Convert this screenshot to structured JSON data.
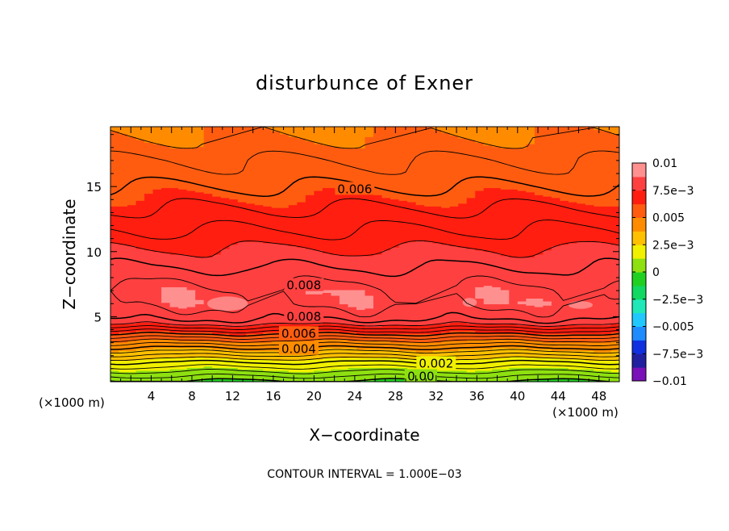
{
  "chart_data": {
    "type": "heatmap",
    "title": "disturbunce of Exner",
    "xlabel": "X−coordinate",
    "ylabel": "Z−coordinate",
    "x_unit": "(×1000 m)",
    "y_unit": "(×1000 m)",
    "xlim": [
      0,
      50
    ],
    "ylim": [
      0,
      19.6
    ],
    "x_ticks": [
      "4",
      "8",
      "12",
      "16",
      "20",
      "24",
      "28",
      "32",
      "36",
      "40",
      "44",
      "48"
    ],
    "y_ticks": [
      "5",
      "10",
      "15"
    ],
    "contour_interval": 0.001,
    "footer": "CONTOUR INTERVAL = 1.000E−03",
    "colorbar": {
      "range": [
        -0.01,
        0.01
      ],
      "tick_labels": [
        "0.01",
        "7.5e−3",
        "0.005",
        "2.5e−3",
        "0",
        "−2.5e−3",
        "−0.005",
        "−7.5e−3",
        "−0.01"
      ],
      "colors": [
        "#7a10b8",
        "#2020a0",
        "#1030e0",
        "#1e8cff",
        "#20c8ff",
        "#20e8b8",
        "#10d860",
        "#20d020",
        "#8ee010",
        "#f0f000",
        "#ffc000",
        "#ff8c00",
        "#ff5c10",
        "#ff1e10",
        "#ff4040",
        "#ff9090"
      ]
    },
    "field_profile": {
      "z": [
        0,
        0.5,
        1,
        1.5,
        2,
        2.5,
        3,
        3.5,
        4,
        4.5,
        5,
        6,
        7,
        8,
        9,
        10,
        11,
        12,
        13,
        14,
        15,
        16,
        17,
        18,
        19,
        19.6
      ],
      "value": [
        -0.0001,
        0.0006,
        0.0013,
        0.002,
        0.0029,
        0.0038,
        0.0047,
        0.0057,
        0.0067,
        0.0077,
        0.0082,
        0.0086,
        0.0086,
        0.0083,
        0.0079,
        0.0076,
        0.0072,
        0.0069,
        0.0066,
        0.0063,
        0.006,
        0.0057,
        0.0055,
        0.0052,
        0.005,
        0.0049
      ]
    },
    "contour_labels": [
      "0.006",
      "0.008",
      "0.008",
      "0.006",
      "0.004",
      "0.002",
      "0.00"
    ]
  }
}
